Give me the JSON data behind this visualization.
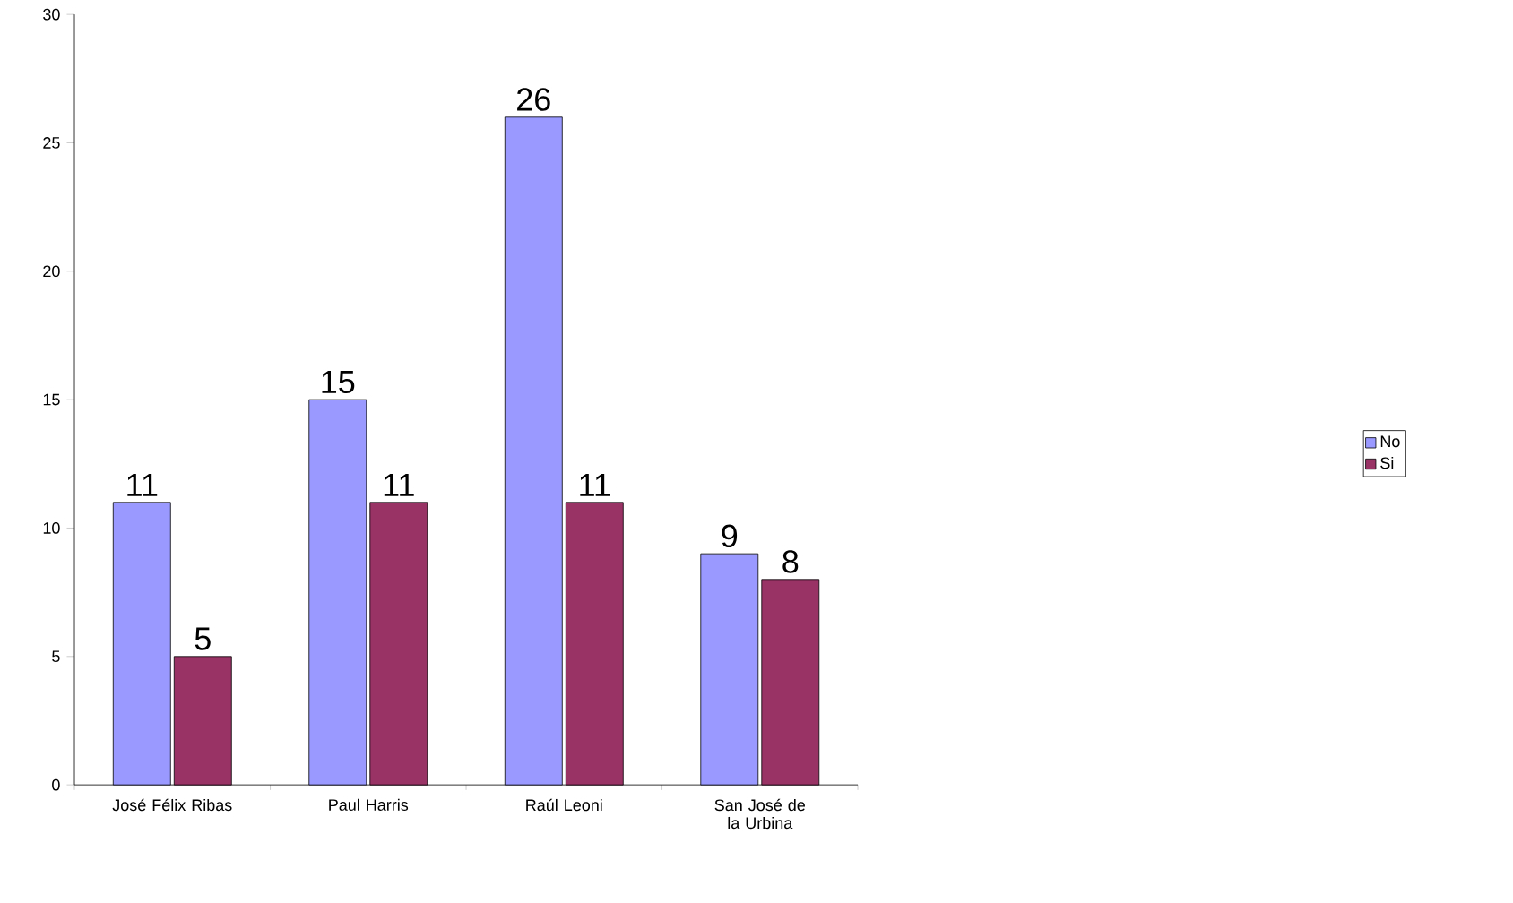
{
  "chart_data": {
    "type": "bar",
    "categories": [
      "José Félix Ribas",
      "Paul Harris",
      "Raúl Leoni",
      "San José de la Urbina"
    ],
    "series": [
      {
        "name": "No",
        "color": "#9999ff",
        "values": [
          11,
          15,
          26,
          9
        ]
      },
      {
        "name": "Si",
        "color": "#993366",
        "values": [
          5,
          11,
          11,
          8
        ]
      }
    ],
    "ylim": [
      0,
      30
    ],
    "yticks": [
      0,
      5,
      10,
      15,
      20,
      25,
      30
    ],
    "data_labels": true,
    "legend": "right",
    "grid": false
  }
}
